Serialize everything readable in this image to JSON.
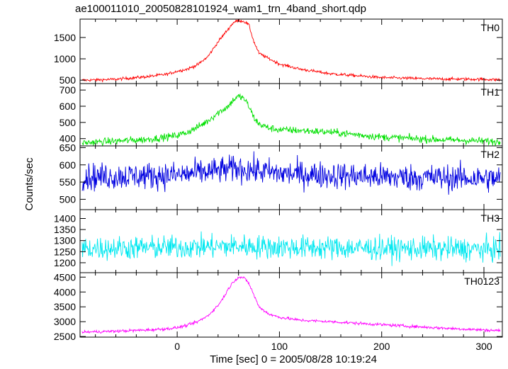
{
  "title": "ae100011010_20050828101924_wam1_trn_4band_short.qdp",
  "ylabel": "Counts/sec",
  "xlabel": "Time [sec] 0 = 2005/08/28 10:19:24",
  "chart_data": {
    "type": "line",
    "title": "ae100011010_20050828101924_wam1_trn_4band_short.qdp",
    "xlabel": "Time [sec] 0 = 2005/08/28 10:19:24",
    "ylabel": "Counts/sec",
    "xlim": [
      -95,
      318
    ],
    "xticks": [
      0,
      100,
      200,
      300
    ],
    "xtick_labels": [
      "0",
      "100",
      "200",
      "300"
    ],
    "grid": false,
    "panels": [
      {
        "name": "TH0",
        "color": "#ff0000",
        "ylim": [
          420,
          1930
        ],
        "yticks": [
          500,
          1000,
          1500
        ],
        "ytick_labels": [
          "500",
          "1000",
          "1500"
        ],
        "x": [
          -90,
          -60,
          -30,
          -10,
          0,
          10,
          20,
          30,
          40,
          45,
          50,
          55,
          60,
          65,
          70,
          75,
          80,
          90,
          100,
          120,
          150,
          200,
          250,
          300,
          315
        ],
        "y": [
          500,
          520,
          580,
          640,
          710,
          760,
          860,
          1050,
          1400,
          1550,
          1700,
          1850,
          1900,
          1880,
          1800,
          1400,
          1130,
          1000,
          880,
          760,
          650,
          560,
          530,
          520,
          510
        ],
        "noise": 25
      },
      {
        "name": "TH1",
        "color": "#00e000",
        "ylim": [
          355,
          740
        ],
        "yticks": [
          400,
          500,
          600,
          700
        ],
        "ytick_labels": [
          "400",
          "500",
          "600",
          "700"
        ],
        "x": [
          -90,
          -60,
          -30,
          -10,
          0,
          10,
          20,
          30,
          40,
          50,
          55,
          60,
          65,
          70,
          75,
          80,
          90,
          100,
          120,
          150,
          200,
          250,
          300,
          315
        ],
        "y": [
          375,
          385,
          395,
          410,
          420,
          440,
          470,
          510,
          560,
          600,
          640,
          660,
          650,
          600,
          530,
          490,
          465,
          455,
          450,
          440,
          410,
          395,
          385,
          380
        ],
        "noise": 16
      },
      {
        "name": "TH2",
        "color": "#0000e0",
        "ylim": [
          470,
          655
        ],
        "yticks": [
          500,
          550,
          600,
          650
        ],
        "ytick_labels": [
          "500",
          "550",
          "600",
          "650"
        ],
        "x": [
          -90,
          0,
          60,
          100,
          200,
          315
        ],
        "y": [
          565,
          570,
          590,
          575,
          565,
          560
        ],
        "noise": 28
      },
      {
        "name": "TH3",
        "color": "#00e8f0",
        "ylim": [
          1155,
          1440
        ],
        "yticks": [
          1200,
          1250,
          1300,
          1350,
          1400
        ],
        "ytick_labels": [
          "1200",
          "1250",
          "1300",
          "1350",
          "1400"
        ],
        "x": [
          -90,
          0,
          60,
          100,
          200,
          315
        ],
        "y": [
          1265,
          1270,
          1275,
          1270,
          1265,
          1260
        ],
        "noise": 38
      },
      {
        "name": "TH0123",
        "color": "#ff00ff",
        "ylim": [
          2480,
          4650
        ],
        "yticks": [
          2500,
          3000,
          3500,
          4000,
          4500
        ],
        "ytick_labels": [
          "2500",
          "3000",
          "3500",
          "4000",
          "4500"
        ],
        "x": [
          -90,
          -60,
          -30,
          -10,
          0,
          10,
          20,
          30,
          40,
          45,
          50,
          55,
          60,
          65,
          70,
          75,
          80,
          90,
          100,
          120,
          150,
          200,
          250,
          300,
          315
        ],
        "y": [
          2650,
          2680,
          2720,
          2760,
          2800,
          2880,
          3000,
          3200,
          3550,
          3800,
          4100,
          4350,
          4500,
          4480,
          4300,
          3900,
          3500,
          3250,
          3150,
          3050,
          3000,
          2900,
          2800,
          2720,
          2700
        ],
        "noise": 35
      }
    ]
  }
}
